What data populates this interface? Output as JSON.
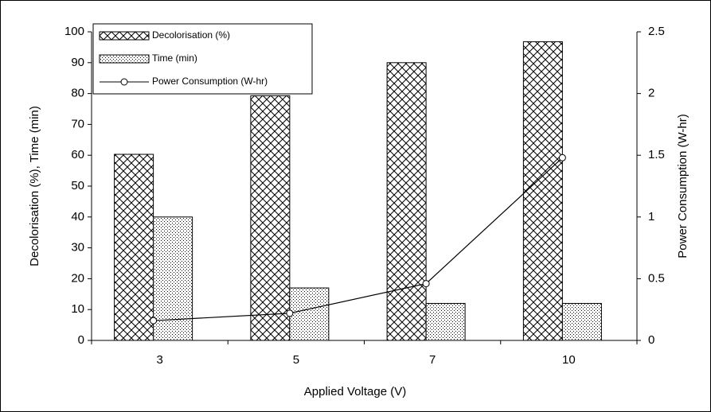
{
  "chart_data": {
    "type": "bar",
    "categories": [
      "3",
      "5",
      "7",
      "10"
    ],
    "series": [
      {
        "name": "Decolorisation (%)",
        "color": "#000000",
        "pattern": "crosshatch",
        "values": [
          60.3,
          79.3,
          90.0,
          96.8
        ]
      },
      {
        "name": "Time (min)",
        "color": "#000000",
        "pattern": "dots",
        "values": [
          40,
          17,
          12,
          12
        ]
      },
      {
        "name": "Power Consumption (W-hr)",
        "type": "line",
        "axis": "y2",
        "color": "#000000",
        "values": [
          0.16,
          0.22,
          0.46,
          1.48
        ]
      }
    ],
    "ylabel": "Decolorisation (%), Time (min)",
    "y2label": "Power Consumption (W-hr)",
    "xlabel": "Applied Voltage (V)",
    "ylim": [
      0,
      100
    ],
    "yticks": [
      0,
      10,
      20,
      30,
      40,
      50,
      60,
      70,
      80,
      90,
      100
    ],
    "y2lim": [
      0,
      2.5
    ],
    "y2ticks": [
      0,
      0.5,
      1,
      1.5,
      2,
      2.5
    ],
    "grid": false,
    "legend": "top-left"
  }
}
